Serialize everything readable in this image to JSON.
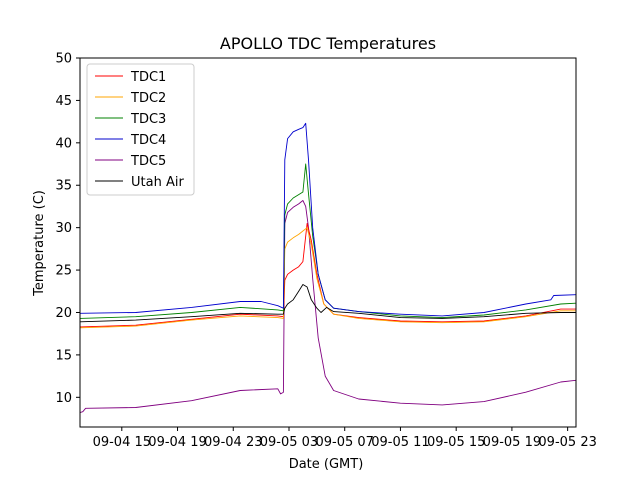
{
  "chart_data": {
    "type": "line",
    "title": "APOLLO TDC Temperatures",
    "xlabel": "Date (GMT)",
    "ylabel": "Temperature (C)",
    "xlim": [
      12.0,
      47.6
    ],
    "ylim": [
      6.5,
      50
    ],
    "x_unit": "hours since 09-04 00:00 GMT",
    "xticks": [
      {
        "value": 15,
        "label": "09-04 15"
      },
      {
        "value": 19,
        "label": "09-04 19"
      },
      {
        "value": 23,
        "label": "09-04 23"
      },
      {
        "value": 27,
        "label": "09-05 03"
      },
      {
        "value": 31,
        "label": "09-05 07"
      },
      {
        "value": 35,
        "label": "09-05 11"
      },
      {
        "value": 39,
        "label": "09-05 15"
      },
      {
        "value": 43,
        "label": "09-05 19"
      },
      {
        "value": 47,
        "label": "09-05 23"
      }
    ],
    "yticks": [
      10,
      15,
      20,
      25,
      30,
      35,
      40,
      45,
      50
    ],
    "legend_position": "top-left",
    "series": [
      {
        "name": "TDC1",
        "color": "#ff0000",
        "key": "tdc1",
        "x": [
          12.0,
          16.0,
          20.0,
          23.5,
          26.2,
          26.6,
          26.7,
          26.9,
          27.3,
          27.7,
          28.0,
          28.3,
          28.6,
          29.0,
          29.5,
          30.2,
          32.0,
          35.0,
          38.0,
          41.0,
          44.0,
          46.5,
          47.6
        ],
        "y": [
          18.3,
          18.5,
          19.2,
          19.8,
          19.6,
          19.5,
          23.8,
          24.5,
          25.0,
          25.4,
          26.0,
          30.5,
          28.5,
          24.5,
          21.0,
          19.8,
          19.4,
          19.0,
          18.9,
          19.0,
          19.6,
          20.4,
          20.4
        ]
      },
      {
        "name": "TDC2",
        "color": "#ffa500",
        "key": "tdc2",
        "x": [
          12.0,
          16.0,
          20.0,
          23.5,
          26.2,
          26.6,
          26.7,
          26.9,
          27.3,
          27.7,
          28.0,
          28.3,
          28.6,
          29.0,
          29.5,
          30.2,
          32.0,
          35.0,
          38.0,
          41.0,
          44.0,
          46.5,
          47.6
        ],
        "y": [
          18.2,
          18.4,
          19.1,
          19.6,
          19.4,
          19.3,
          27.5,
          28.3,
          28.8,
          29.2,
          29.6,
          30.0,
          28.0,
          24.0,
          21.0,
          19.8,
          19.3,
          18.9,
          18.8,
          18.9,
          19.5,
          20.2,
          20.2
        ]
      },
      {
        "name": "TDC3",
        "color": "#008000",
        "key": "tdc3",
        "x": [
          12.0,
          16.0,
          20.0,
          23.5,
          26.2,
          26.6,
          26.7,
          26.9,
          27.3,
          27.7,
          28.0,
          28.2,
          28.4,
          28.7,
          29.1,
          29.6,
          30.2,
          32.0,
          35.0,
          38.0,
          41.0,
          44.0,
          46.5,
          47.6
        ],
        "y": [
          19.3,
          19.5,
          20.0,
          20.6,
          20.3,
          20.2,
          31.5,
          32.8,
          33.5,
          33.9,
          34.2,
          37.5,
          34.0,
          29.0,
          24.5,
          21.5,
          20.5,
          20.1,
          19.6,
          19.4,
          19.7,
          20.3,
          21.0,
          21.1
        ]
      },
      {
        "name": "TDC4",
        "color": "#0000cd",
        "key": "tdc4",
        "x": [
          12.0,
          16.0,
          20.0,
          23.5,
          25.0,
          26.2,
          26.6,
          26.7,
          26.9,
          27.3,
          27.7,
          28.0,
          28.2,
          28.4,
          28.7,
          29.1,
          29.6,
          30.2,
          32.0,
          35.0,
          38.0,
          41.0,
          44.0,
          45.8,
          46.0,
          47.6
        ],
        "y": [
          19.9,
          20.0,
          20.6,
          21.3,
          21.3,
          20.8,
          20.5,
          38.0,
          40.5,
          41.3,
          41.6,
          41.8,
          42.3,
          38.0,
          30.0,
          24.5,
          21.5,
          20.5,
          20.1,
          19.8,
          19.6,
          20.0,
          21.0,
          21.5,
          22.0,
          22.1
        ]
      },
      {
        "name": "TDC5",
        "color": "#800080",
        "key": "tdc5",
        "x": [
          12.0,
          12.2,
          12.4,
          16.0,
          20.0,
          23.5,
          26.2,
          26.4,
          26.6,
          26.7,
          26.9,
          27.3,
          27.7,
          28.0,
          28.2,
          28.4,
          28.7,
          29.1,
          29.6,
          30.2,
          32.0,
          35.0,
          38.0,
          41.0,
          44.0,
          46.5,
          47.6
        ],
        "y": [
          8.2,
          8.3,
          8.7,
          8.8,
          9.6,
          10.8,
          11.0,
          10.4,
          10.6,
          30.5,
          31.8,
          32.4,
          32.8,
          33.2,
          32.5,
          30.0,
          24.0,
          17.0,
          12.5,
          10.8,
          9.8,
          9.3,
          9.1,
          9.5,
          10.6,
          11.8,
          12.0
        ]
      },
      {
        "name": "Utah Air",
        "color": "#000000",
        "key": "utah",
        "x": [
          12.0,
          16.0,
          20.0,
          23.5,
          26.2,
          26.6,
          26.7,
          26.9,
          27.3,
          27.7,
          28.0,
          28.3,
          28.6,
          29.0,
          29.3,
          29.7,
          30.2,
          32.0,
          35.0,
          38.0,
          41.0,
          44.0,
          46.5,
          47.6
        ],
        "y": [
          18.9,
          19.1,
          19.5,
          19.9,
          19.8,
          19.8,
          20.5,
          21.0,
          21.5,
          22.5,
          23.3,
          23.0,
          21.5,
          20.5,
          20.0,
          20.6,
          20.1,
          19.9,
          19.4,
          19.3,
          19.5,
          19.9,
          20.0,
          20.0
        ]
      }
    ]
  }
}
